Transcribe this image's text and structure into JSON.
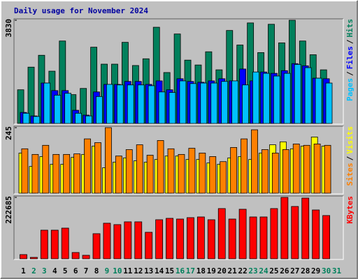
{
  "chart_data": [
    {
      "type": "bar",
      "title": "Daily usage for November 2024",
      "legend_separator": "/",
      "ylim": [
        0,
        3830
      ],
      "yticks": [
        3830
      ],
      "series": [
        {
          "name": "Hits",
          "color": "#00805C",
          "values": [
            1250,
            2090,
            2530,
            1940,
            3060,
            1070,
            1300,
            2830,
            2200,
            2200,
            3010,
            2150,
            2400,
            3570,
            1890,
            3320,
            2350,
            2170,
            2660,
            1990,
            3450,
            2910,
            3730,
            2630,
            3680,
            2990,
            3830,
            3060,
            2550,
            1990,
            null
          ]
        },
        {
          "name": "Files",
          "color": "#0000FF",
          "values": [
            410,
            280,
            1500,
            1220,
            1220,
            490,
            310,
            1170,
            1450,
            1450,
            1560,
            1560,
            1450,
            1580,
            1250,
            1660,
            1560,
            1530,
            1580,
            1660,
            1580,
            2020,
            1580,
            1910,
            1860,
            1960,
            2220,
            2140,
            1680,
            1660,
            null
          ]
        },
        {
          "name": "Pages",
          "color": "#00C0FF",
          "values": [
            380,
            260,
            1500,
            1050,
            1120,
            380,
            280,
            1000,
            1450,
            1430,
            1430,
            1430,
            1400,
            1170,
            1150,
            1580,
            1480,
            1500,
            1500,
            1560,
            1580,
            1430,
            1910,
            1860,
            1760,
            1860,
            2190,
            2070,
            1680,
            1500,
            null
          ]
        }
      ]
    },
    {
      "type": "bar",
      "ylim": [
        0,
        245
      ],
      "yticks": [
        245
      ],
      "series": [
        {
          "name": "Visits",
          "color": "#FFFF00",
          "values": [
            150,
            100,
            137,
            108,
            108,
            134,
            145,
            176,
            95,
            116,
            132,
            121,
            116,
            126,
            139,
            139,
            126,
            126,
            113,
            108,
            132,
            137,
            126,
            150,
            181,
            192,
            166,
            176,
            210,
            176,
            null
          ]
        },
        {
          "name": "Sites",
          "color": "#FF8000",
          "values": [
            166,
            145,
            179,
            145,
            145,
            147,
            203,
            189,
            245,
            139,
            163,
            181,
            142,
            197,
            166,
            145,
            168,
            150,
            137,
            118,
            171,
            203,
            237,
            163,
            150,
            163,
            184,
            179,
            184,
            179,
            null
          ]
        }
      ]
    },
    {
      "type": "bar",
      "ylim": [
        0,
        222685
      ],
      "yticks": [
        222685
      ],
      "categories": [
        "1",
        "2",
        "3",
        "4",
        "5",
        "6",
        "7",
        "8",
        "9",
        "10",
        "11",
        "12",
        "13",
        "14",
        "15",
        "16",
        "17",
        "18",
        "19",
        "20",
        "21",
        "22",
        "23",
        "24",
        "25",
        "26",
        "27",
        "28",
        "29",
        "30",
        "31"
      ],
      "category_colors": [
        "#000000",
        "#00805C",
        "#00805C",
        "#000000",
        "#000000",
        "#000000",
        "#000000",
        "#000000",
        "#00805C",
        "#00805C",
        "#000000",
        "#000000",
        "#000000",
        "#000000",
        "#000000",
        "#00805C",
        "#00805C",
        "#000000",
        "#000000",
        "#000000",
        "#000000",
        "#000000",
        "#00805C",
        "#00805C",
        "#000000",
        "#000000",
        "#000000",
        "#000000",
        "#000000",
        "#00805C",
        "#00805C"
      ],
      "series": [
        {
          "name": "KBytes",
          "color": "#FF0000",
          "values": [
            15200,
            5100,
            103800,
            103800,
            111300,
            22800,
            12700,
            91100,
            129100,
            124000,
            134100,
            134100,
            96200,
            141700,
            146800,
            144200,
            149300,
            151800,
            141700,
            182200,
            144200,
            179700,
            151800,
            151800,
            182200,
            222685,
            189800,
            220200,
            177100,
            156900,
            null
          ]
        }
      ]
    }
  ]
}
